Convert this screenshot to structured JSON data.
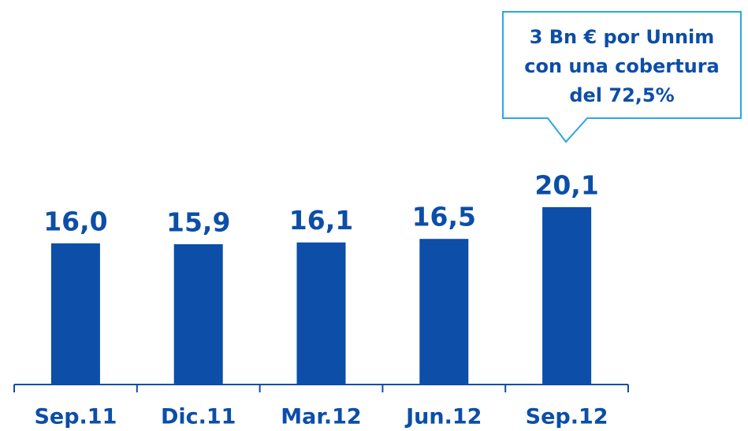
{
  "chart_data": {
    "type": "bar",
    "categories": [
      "Sep.11",
      "Dic.11",
      "Mar.12",
      "Jun.12",
      "Sep.12"
    ],
    "values": [
      16.0,
      15.9,
      16.1,
      16.5,
      20.1
    ],
    "value_labels": [
      "16,0",
      "15,9",
      "16,1",
      "16,5",
      "20,1"
    ],
    "color": "#0c4ea8",
    "annotation": [
      "3 Bn € por Unnim",
      "con una cobertura",
      "del 72,5%"
    ]
  }
}
